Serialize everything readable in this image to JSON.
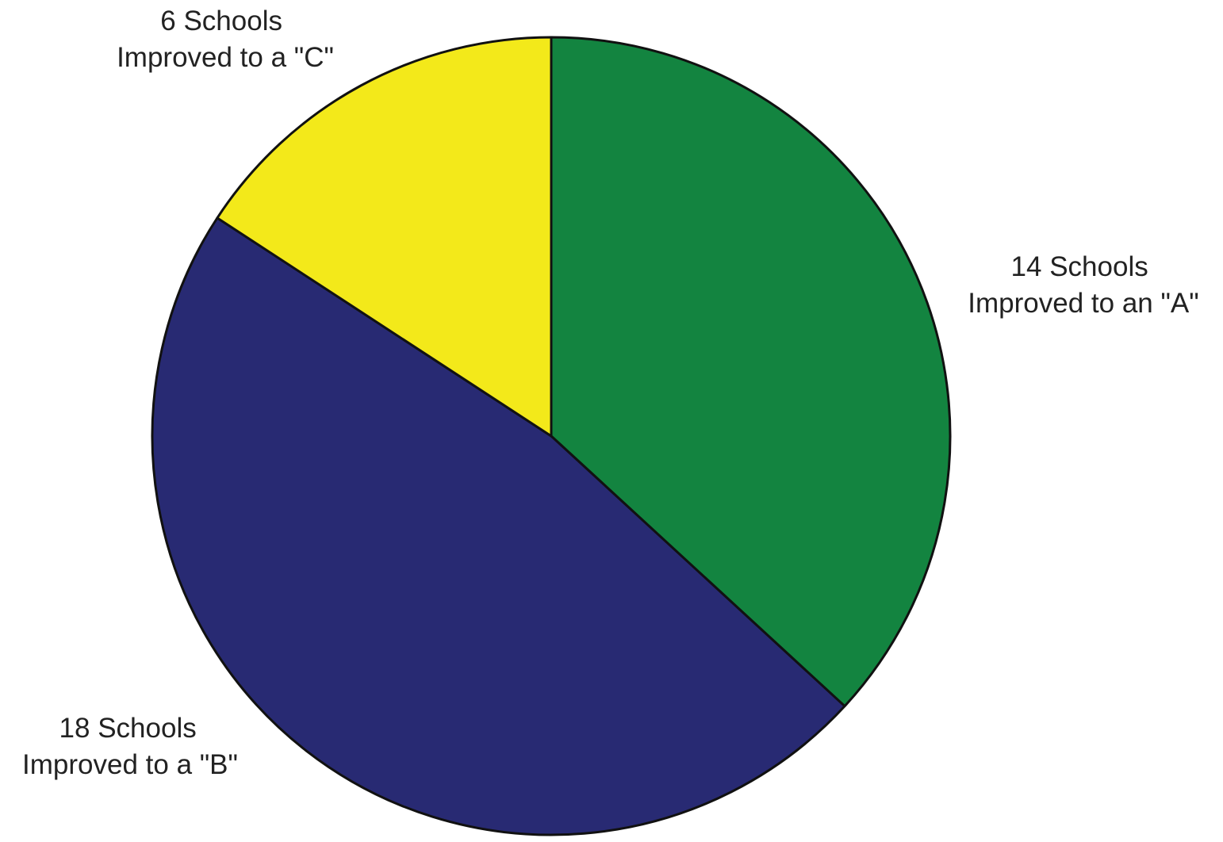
{
  "chart_data": {
    "type": "pie",
    "title": "",
    "start": "top",
    "direction": "clockwise",
    "slices": [
      {
        "label_line1": "14 Schools",
        "label_line2": "Improved to an \"A\"",
        "value": 14,
        "color": "#138440"
      },
      {
        "label_line1": "18 Schools",
        "label_line2": "Improved to a \"B\"",
        "value": 18,
        "color": "#282a73"
      },
      {
        "label_line1": "6 Schools",
        "label_line2": "Improved to a \"C\"",
        "value": 6,
        "color": "#f3e91a"
      }
    ]
  }
}
